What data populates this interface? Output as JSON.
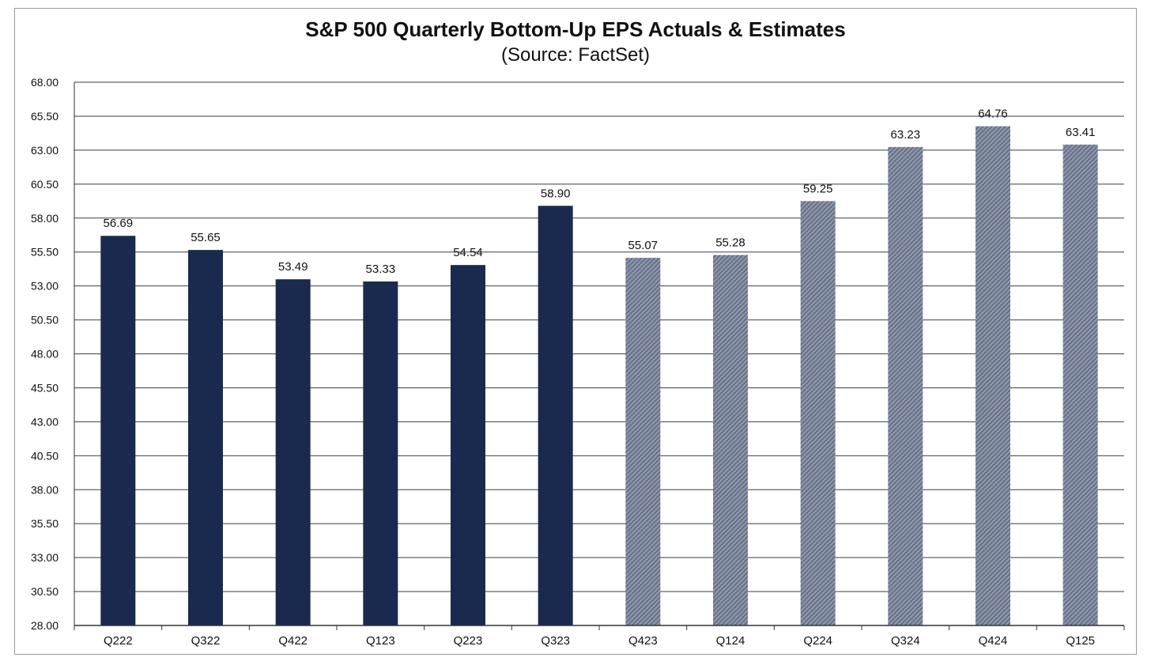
{
  "chart_data": {
    "type": "bar",
    "title": "S&P 500 Quarterly Bottom-Up EPS Actuals & Estimates",
    "subtitle": "(Source: FactSet)",
    "categories": [
      "Q222",
      "Q322",
      "Q422",
      "Q123",
      "Q223",
      "Q323",
      "Q423",
      "Q124",
      "Q224",
      "Q324",
      "Q424",
      "Q125"
    ],
    "values": [
      56.69,
      55.65,
      53.49,
      53.33,
      54.54,
      58.9,
      55.07,
      55.28,
      59.25,
      63.23,
      64.76,
      63.41
    ],
    "value_labels": [
      "56.69",
      "55.65",
      "53.49",
      "53.33",
      "54.54",
      "58.90",
      "55.07",
      "55.28",
      "59.25",
      "63.23",
      "64.76",
      "63.41"
    ],
    "kinds": [
      "actual",
      "actual",
      "actual",
      "actual",
      "actual",
      "actual",
      "estimate",
      "estimate",
      "estimate",
      "estimate",
      "estimate",
      "estimate"
    ],
    "ylim": [
      28,
      68
    ],
    "yticks": [
      "28.00",
      "30.50",
      "33.00",
      "35.50",
      "38.00",
      "40.50",
      "43.00",
      "45.50",
      "48.00",
      "50.50",
      "53.00",
      "55.50",
      "58.00",
      "60.50",
      "63.00",
      "65.50",
      "68.00"
    ],
    "grid": true,
    "colors": {
      "actual": "#1a2a4f",
      "estimate": "#8a93a8",
      "estimate_stripe": "#4e5870",
      "grid": "#3a3f4a"
    },
    "xlabel": "",
    "ylabel": ""
  }
}
